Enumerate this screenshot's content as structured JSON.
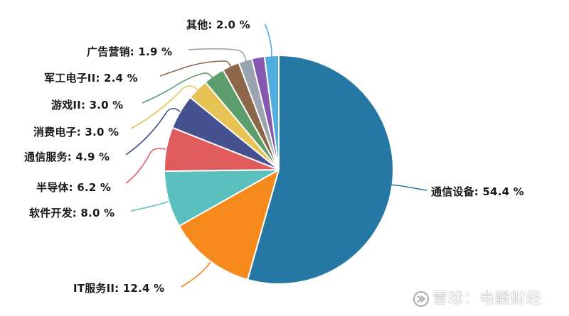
{
  "chart_data": {
    "type": "pie",
    "title": "",
    "start_angle_deg": 0,
    "direction": "clockwise",
    "slices": [
      {
        "label": "通信设备",
        "value": 54.4,
        "display": "通信设备: 54.4 %",
        "color": "#2478a3"
      },
      {
        "label": "IT服务II",
        "value": 12.4,
        "display": "IT服务II: 12.4 %",
        "color": "#f5891b"
      },
      {
        "label": "软件开发",
        "value": 8.0,
        "display": "软件开发: 8.0 %",
        "color": "#5bbfbe"
      },
      {
        "label": "半导体",
        "value": 6.2,
        "display": "半导体: 6.2 %",
        "color": "#e05b5c"
      },
      {
        "label": "通信服务",
        "value": 4.9,
        "display": "通信服务: 4.9 %",
        "color": "#46528f"
      },
      {
        "label": "消费电子",
        "value": 3.0,
        "display": "消费电子: 3.0 %",
        "color": "#e6c354"
      },
      {
        "label": "游戏II",
        "value": 3.0,
        "display": "游戏II: 3.0 %",
        "color": "#5b9e6c"
      },
      {
        "label": "军工电子II",
        "value": 2.4,
        "display": "军工电子II: 2.4 %",
        "color": "#8c6648"
      },
      {
        "label": "广告营销",
        "value": 1.9,
        "display": "广告营销: 1.9 %",
        "color": "#9aa4ae"
      },
      {
        "label": "",
        "value": 1.8,
        "display": "",
        "color": "#8659b0"
      },
      {
        "label": "其他",
        "value": 2.0,
        "display": "其他: 2.0 %",
        "color": "#4fade0"
      }
    ],
    "legend": "none",
    "unit": "%"
  },
  "labels": {
    "tongxin_shebei": "通信设备: 54.4 %",
    "it_fuwu": "IT服务II: 12.4 %",
    "ruanjian": "软件开发: 8.0 %",
    "bandaoti": "半导体: 6.2 %",
    "tongxin_fuwu": "通信服务: 4.9 %",
    "xiaofei": "消费电子: 3.0 %",
    "youxi": "游戏II: 3.0 %",
    "jungong": "军工电子II: 2.4 %",
    "guanggao": "广告营销: 1.9 %",
    "qita": "其他: 2.0 %"
  },
  "watermark": {
    "text": "雪球：电鳗财经"
  }
}
